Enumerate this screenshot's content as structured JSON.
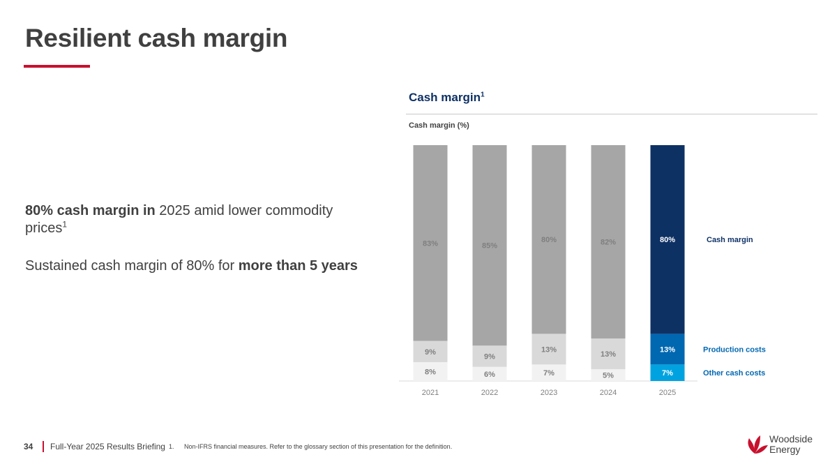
{
  "title": "Resilient cash margin",
  "bullets": [
    {
      "bold": "80% cash margin in",
      "text": " 2025 amid lower commodity prices",
      "sup": "1"
    },
    {
      "text": "Sustained cash margin of 80% for ",
      "bold": "more than 5 years"
    }
  ],
  "chart_title": "Cash margin",
  "chart_title_sup": "1",
  "chart_data": {
    "type": "bar",
    "stacked": true,
    "ylabel": "Cash margin (%)",
    "ylim": [
      0,
      100
    ],
    "categories": [
      "2021",
      "2022",
      "2023",
      "2024",
      "2025"
    ],
    "series": [
      {
        "name": "Other cash costs",
        "values": [
          8,
          6,
          7,
          5,
          7
        ],
        "labels": [
          "8%",
          "6%",
          "7%",
          "5%",
          "7%"
        ]
      },
      {
        "name": "Production costs",
        "values": [
          9,
          9,
          13,
          13,
          13
        ],
        "labels": [
          "9%",
          "9%",
          "13%",
          "13%",
          "13%"
        ]
      },
      {
        "name": "Cash margin",
        "values": [
          83,
          85,
          80,
          82,
          80
        ],
        "labels": [
          "83%",
          "85%",
          "80%",
          "82%",
          "80%"
        ]
      }
    ],
    "colors": {
      "history": [
        "#f2f2f2",
        "#d9d9d9",
        "#a6a6a6"
      ],
      "highlight": [
        "#00a3e0",
        "#0067b1",
        "#0e3164"
      ],
      "label_history": "#7f7f7f",
      "label_highlight": "#ffffff",
      "legend": [
        "#0067b1",
        "#0067b1",
        "#0e3164"
      ]
    },
    "highlight_index": 4
  },
  "footer": {
    "page": "34",
    "text": "Full-Year 2025 Results Briefing",
    "footnote_number": "1.",
    "footnote": "Non-IFRS financial measures. Refer to the glossary section of this presentation for the definition."
  },
  "logo": {
    "line1": "Woodside",
    "line2": "Energy",
    "color": "#c8102e"
  }
}
